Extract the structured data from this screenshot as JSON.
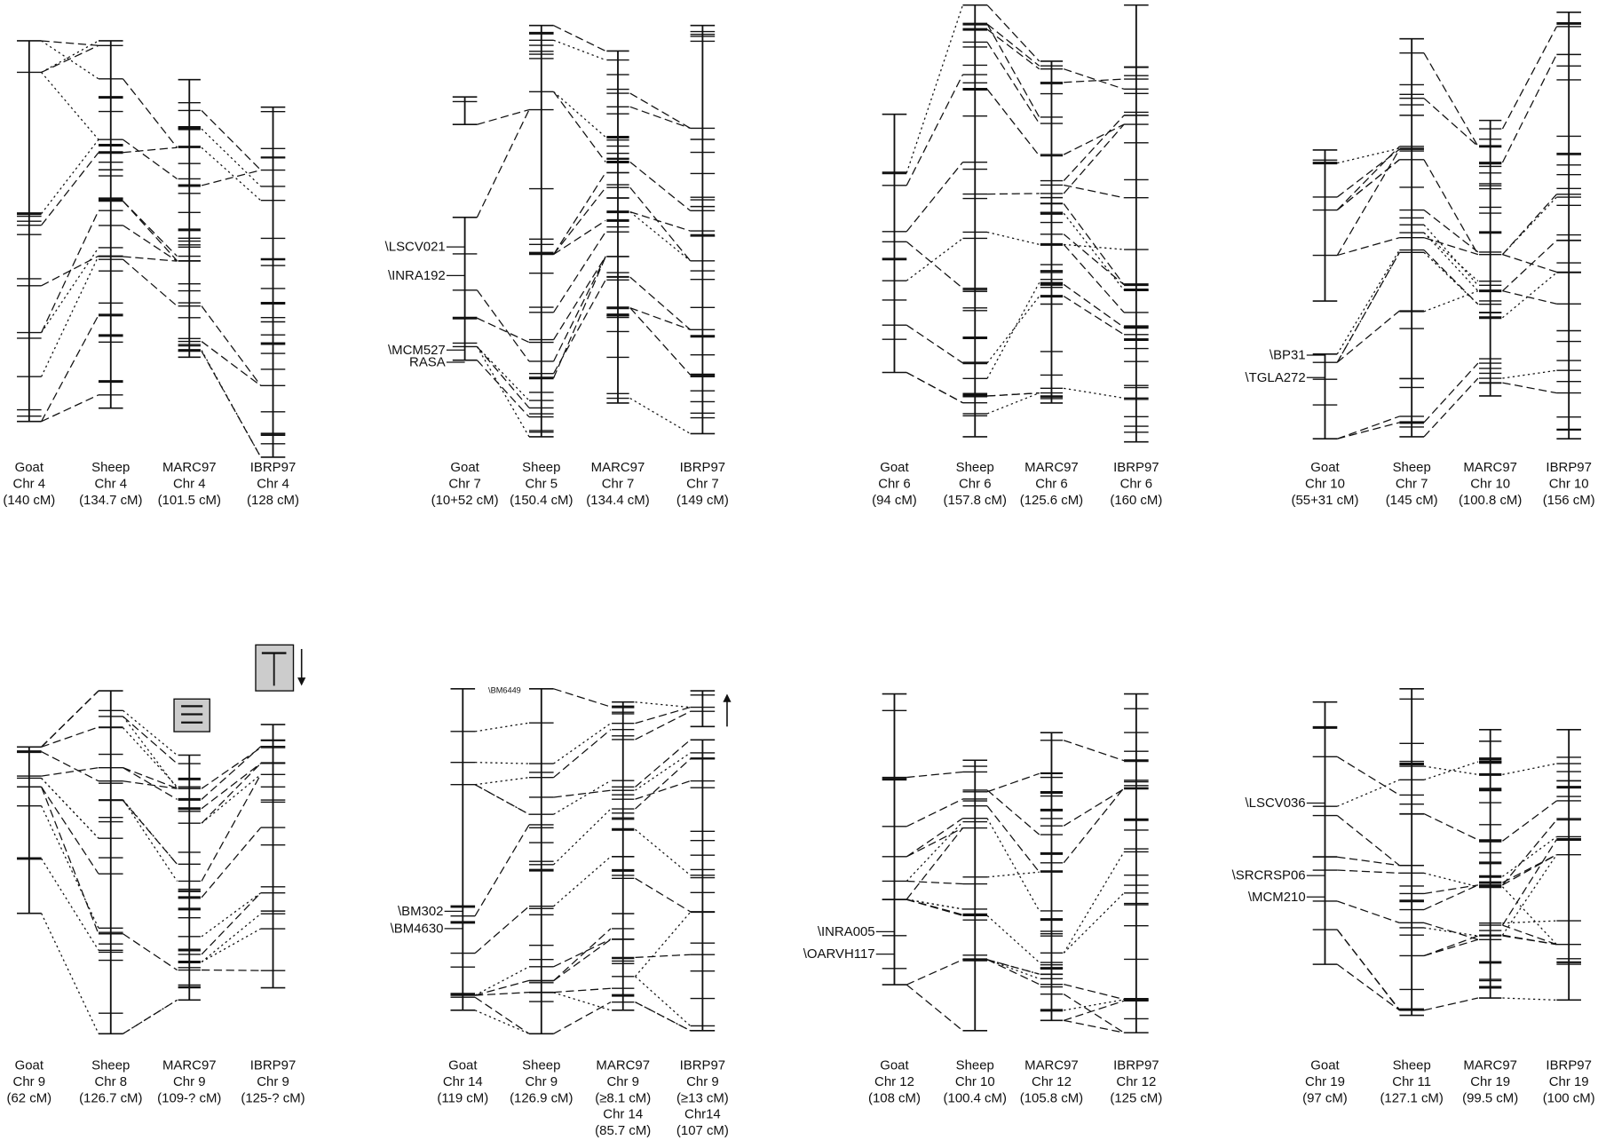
{
  "panels": [
    {
      "columns": [
        {
          "lines": [
            "Goat",
            "Chr 4",
            "(140 cM)"
          ]
        },
        {
          "lines": [
            "Sheep",
            "Chr 4",
            "(134.7 cM)"
          ]
        },
        {
          "lines": [
            "MARC97",
            "Chr 4",
            "(101.5 cM)"
          ]
        },
        {
          "lines": [
            "IBRP97",
            "Chr 4",
            "(128 cM)"
          ]
        }
      ],
      "markers": []
    },
    {
      "columns": [
        {
          "lines": [
            "Goat",
            "Chr 7",
            "(10+52 cM)"
          ]
        },
        {
          "lines": [
            "Sheep",
            "Chr 5",
            "(150.4 cM)"
          ]
        },
        {
          "lines": [
            "MARC97",
            "Chr 7",
            "(134.4 cM)"
          ]
        },
        {
          "lines": [
            "IBRP97",
            "Chr 7",
            "(149 cM)"
          ]
        }
      ],
      "markers": [
        "\\LSCV021",
        "\\INRA192",
        "\\MCM527",
        "RASA"
      ]
    },
    {
      "columns": [
        {
          "lines": [
            "Goat",
            "Chr 6",
            "(94 cM)"
          ]
        },
        {
          "lines": [
            "Sheep",
            "Chr 6",
            "(157.8 cM)"
          ]
        },
        {
          "lines": [
            "MARC97",
            "Chr 6",
            "(125.6 cM)"
          ]
        },
        {
          "lines": [
            "IBRP97",
            "Chr 6",
            "(160 cM)"
          ]
        }
      ],
      "markers": []
    },
    {
      "columns": [
        {
          "lines": [
            "Goat",
            "Chr 10",
            "(55+31 cM)"
          ]
        },
        {
          "lines": [
            "Sheep",
            "Chr 7",
            "(145 cM)"
          ]
        },
        {
          "lines": [
            "MARC97",
            "Chr 10",
            "(100.8 cM)"
          ]
        },
        {
          "lines": [
            "IBRP97",
            "Chr 10",
            "(156 cM)"
          ]
        }
      ],
      "markers": [
        "\\BP31",
        "\\TGLA272"
      ]
    },
    {
      "columns": [
        {
          "lines": [
            "Goat",
            "Chr 9",
            "(62 cM)"
          ]
        },
        {
          "lines": [
            "Sheep",
            "Chr 8",
            "(126.7 cM)"
          ]
        },
        {
          "lines": [
            "MARC97",
            "Chr 9",
            "(109-? cM)"
          ]
        },
        {
          "lines": [
            "IBRP97",
            "Chr 9",
            "(125-? cM)"
          ]
        }
      ],
      "markers": []
    },
    {
      "columns": [
        {
          "lines": [
            "Goat",
            "Chr 14",
            "(119 cM)"
          ]
        },
        {
          "lines": [
            "Sheep",
            "Chr 9",
            "(126.9 cM)"
          ]
        },
        {
          "lines": [
            "MARC97",
            "Chr 9",
            "(≥8.1 cM)",
            "Chr 14",
            "(85.7 cM)"
          ]
        },
        {
          "lines": [
            "IBRP97",
            "Chr 9",
            "(≥13 cM)",
            "Chr14",
            "(107 cM)"
          ]
        }
      ],
      "markers": [
        "\\BM6449",
        "\\BM302",
        "\\BM4630"
      ]
    },
    {
      "columns": [
        {
          "lines": [
            "Goat",
            "Chr 12",
            "(108 cM)"
          ]
        },
        {
          "lines": [
            "Sheep",
            "Chr 10",
            "(100.4 cM)"
          ]
        },
        {
          "lines": [
            "MARC97",
            "Chr 12",
            "(105.8 cM)"
          ]
        },
        {
          "lines": [
            "IBRP97",
            "Chr 12",
            "(125 cM)"
          ]
        }
      ],
      "markers": [
        "\\INRA005",
        "\\OARVH117"
      ]
    },
    {
      "columns": [
        {
          "lines": [
            "Goat",
            "Chr 19",
            "(97 cM)"
          ]
        },
        {
          "lines": [
            "Sheep",
            "Chr 11",
            "(127.1 cM)"
          ]
        },
        {
          "lines": [
            "MARC97",
            "Chr 19",
            "(99.5 cM)"
          ]
        },
        {
          "lines": [
            "IBRP97",
            "Chr 19",
            "(100 cM)"
          ]
        }
      ],
      "markers": [
        "\\LSCV036",
        "\\SRCRSP06",
        "\\MCM210"
      ]
    }
  ]
}
